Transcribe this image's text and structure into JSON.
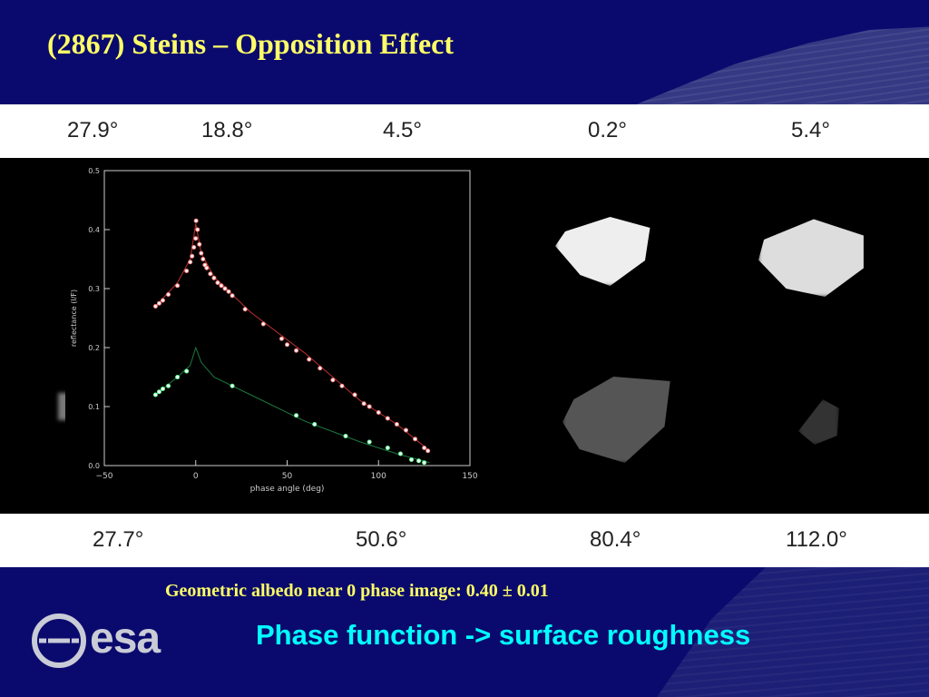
{
  "slide": {
    "title": "(2867) Steins – Opposition Effect",
    "caption": "Geometric albedo near 0 phase image: 0.40 ± 0.01",
    "subtitle": "Phase function -> surface roughness",
    "logo_text": "esa"
  },
  "image_strip": {
    "top_angles": [
      "27.9°",
      "18.8°",
      "4.5°",
      "0.2°",
      "5.4°"
    ],
    "bottom_angles": [
      "27.7°",
      "50.6°",
      "80.4°",
      "112.0°"
    ]
  },
  "colors": {
    "background": "#0a0a6e",
    "title": "#ffff66",
    "subtitle": "#00ffff",
    "series_upper": "#ff8080",
    "series_lower": "#66ff99"
  },
  "chart_data": {
    "type": "scatter",
    "xlabel": "phase angle (deg)",
    "ylabel": "reflectance (I/F)",
    "xlim": [
      -50,
      150
    ],
    "ylim": [
      0,
      0.5
    ],
    "xticks": [
      -50,
      0,
      50,
      100,
      150
    ],
    "yticks": [
      0.0,
      0.1,
      0.2,
      0.3,
      0.4,
      0.5
    ],
    "series": [
      {
        "points": [
          [
            -22,
            0.27
          ],
          [
            -20,
            0.275
          ],
          [
            -18,
            0.28
          ],
          [
            -15,
            0.29
          ],
          [
            -10,
            0.305
          ],
          [
            -5,
            0.33
          ],
          [
            -3,
            0.345
          ],
          [
            -2,
            0.355
          ],
          [
            -1,
            0.37
          ],
          [
            0,
            0.385
          ],
          [
            0.2,
            0.415
          ],
          [
            1,
            0.4
          ],
          [
            2,
            0.375
          ],
          [
            3,
            0.36
          ],
          [
            4,
            0.35
          ],
          [
            5,
            0.34
          ],
          [
            6,
            0.335
          ],
          [
            8,
            0.325
          ],
          [
            10,
            0.318
          ],
          [
            12,
            0.31
          ],
          [
            14,
            0.305
          ],
          [
            16,
            0.3
          ],
          [
            18,
            0.295
          ],
          [
            20,
            0.288
          ],
          [
            27,
            0.265
          ],
          [
            37,
            0.24
          ],
          [
            47,
            0.215
          ],
          [
            50,
            0.205
          ],
          [
            55,
            0.195
          ],
          [
            62,
            0.18
          ],
          [
            68,
            0.165
          ],
          [
            75,
            0.145
          ],
          [
            80,
            0.135
          ],
          [
            87,
            0.12
          ],
          [
            92,
            0.105
          ],
          [
            95,
            0.1
          ],
          [
            100,
            0.09
          ],
          [
            105,
            0.08
          ],
          [
            110,
            0.07
          ],
          [
            115,
            0.06
          ],
          [
            120,
            0.045
          ],
          [
            125,
            0.03
          ],
          [
            127,
            0.025
          ]
        ],
        "model_curve": [
          [
            -22,
            0.27
          ],
          [
            -10,
            0.31
          ],
          [
            -3,
            0.35
          ],
          [
            0,
            0.41
          ],
          [
            3,
            0.36
          ],
          [
            10,
            0.32
          ],
          [
            30,
            0.26
          ],
          [
            60,
            0.19
          ],
          [
            90,
            0.11
          ],
          [
            110,
            0.07
          ],
          [
            128,
            0.025
          ]
        ]
      },
      {
        "points": [
          [
            -22,
            0.12
          ],
          [
            -20,
            0.125
          ],
          [
            -18,
            0.13
          ],
          [
            -15,
            0.135
          ],
          [
            -10,
            0.15
          ],
          [
            -5,
            0.16
          ],
          [
            20,
            0.135
          ],
          [
            55,
            0.085
          ],
          [
            65,
            0.07
          ],
          [
            82,
            0.05
          ],
          [
            95,
            0.04
          ],
          [
            105,
            0.03
          ],
          [
            112,
            0.02
          ],
          [
            118,
            0.01
          ],
          [
            122,
            0.008
          ],
          [
            125,
            0.005
          ]
        ],
        "model_curve": [
          [
            -22,
            0.12
          ],
          [
            -10,
            0.15
          ],
          [
            -3,
            0.17
          ],
          [
            0,
            0.2
          ],
          [
            3,
            0.175
          ],
          [
            10,
            0.15
          ],
          [
            30,
            0.12
          ],
          [
            60,
            0.075
          ],
          [
            90,
            0.04
          ],
          [
            110,
            0.02
          ],
          [
            128,
            0.005
          ]
        ]
      }
    ]
  }
}
